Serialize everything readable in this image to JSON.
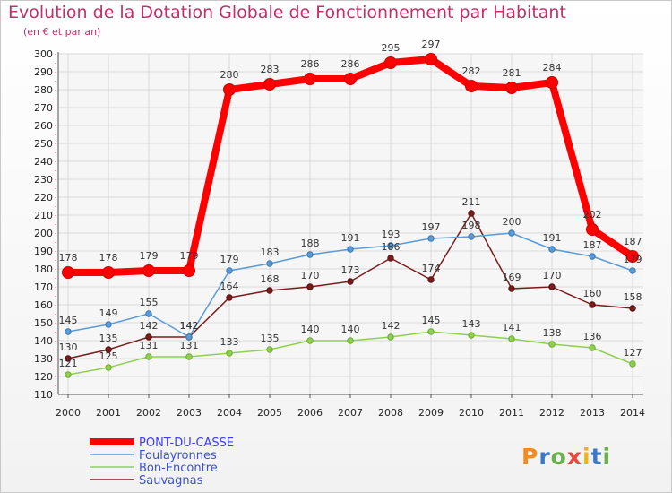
{
  "chart_data": {
    "type": "line",
    "title": "Evolution de la Dotation Globale de Fonctionnement par Habitant",
    "subtitle": "(en € et par an)",
    "xlabel": "",
    "ylabel": "",
    "x": [
      "2000",
      "2001",
      "2002",
      "2003",
      "2004",
      "2005",
      "2006",
      "2007",
      "2008",
      "2009",
      "2010",
      "2011",
      "2012",
      "2013",
      "2014"
    ],
    "ylim": [
      110,
      300
    ],
    "yticks": [
      110,
      120,
      130,
      140,
      150,
      160,
      170,
      180,
      190,
      200,
      210,
      220,
      230,
      240,
      250,
      260,
      270,
      280,
      290,
      300
    ],
    "grid": true,
    "legend_position": "bottom-left",
    "series": [
      {
        "name": "PONT-DU-CASSE",
        "color": "#ff0000",
        "values": [
          178,
          178,
          179,
          179,
          280,
          283,
          286,
          286,
          295,
          297,
          282,
          281,
          284,
          202,
          187
        ]
      },
      {
        "name": "Foulayronnes",
        "color": "#5b9bd5",
        "values": [
          145,
          149,
          155,
          142,
          179,
          183,
          188,
          191,
          193,
          197,
          198,
          200,
          191,
          187,
          179
        ]
      },
      {
        "name": "Bon-Encontre",
        "color": "#8fd14f",
        "values": [
          121,
          125,
          131,
          131,
          133,
          135,
          140,
          140,
          142,
          145,
          143,
          141,
          138,
          136,
          127
        ]
      },
      {
        "name": "Sauvagnas",
        "color": "#7b1c1c",
        "values": [
          130,
          135,
          142,
          142,
          164,
          168,
          170,
          173,
          186,
          174,
          211,
          169,
          170,
          160,
          158
        ]
      }
    ]
  },
  "watermark": "Proxiti"
}
